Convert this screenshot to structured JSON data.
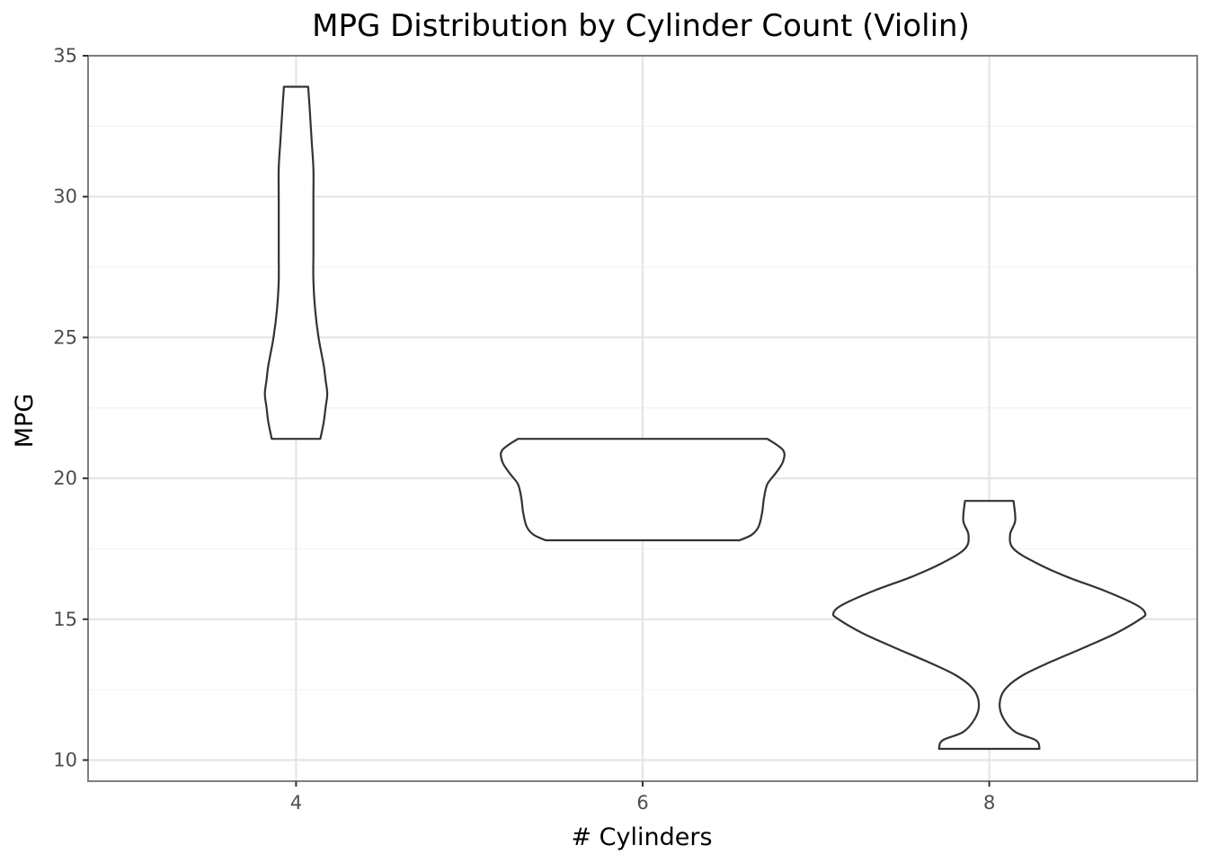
{
  "chart_data": {
    "type": "violin",
    "title": "MPG Distribution by Cylinder Count (Violin)",
    "xlabel": "# Cylinders",
    "ylabel": "MPG",
    "categories": [
      "4",
      "6",
      "8"
    ],
    "x": [
      4,
      6,
      8
    ],
    "xlim": [
      2.8,
      9.2
    ],
    "ylim": [
      9.25,
      35
    ],
    "yticks": [
      10,
      15,
      20,
      25,
      30,
      35
    ],
    "grid": true,
    "legend": "none",
    "colors": {
      "outline": "#333333",
      "fill": "#ffffff",
      "grid_major": "#e5e5e5",
      "grid_minor": "#f3f3f3",
      "panel_border": "#7f7f7f"
    },
    "violins": [
      {
        "x": 4,
        "ymin": 21.4,
        "ymax": 33.9,
        "profile": [
          [
            21.4,
            0.14
          ],
          [
            22.0,
            0.16
          ],
          [
            22.5,
            0.17
          ],
          [
            23.0,
            0.18
          ],
          [
            23.5,
            0.17
          ],
          [
            24.0,
            0.16
          ],
          [
            25.0,
            0.13
          ],
          [
            26.0,
            0.11
          ],
          [
            27.0,
            0.1
          ],
          [
            28.0,
            0.1
          ],
          [
            29.0,
            0.1
          ],
          [
            30.0,
            0.1
          ],
          [
            31.0,
            0.1
          ],
          [
            32.0,
            0.09
          ],
          [
            33.0,
            0.08
          ],
          [
            33.9,
            0.07
          ]
        ]
      },
      {
        "x": 6,
        "ymin": 17.8,
        "ymax": 21.4,
        "profile": [
          [
            17.8,
            0.56
          ],
          [
            18.0,
            0.63
          ],
          [
            18.3,
            0.67
          ],
          [
            18.8,
            0.69
          ],
          [
            19.3,
            0.7
          ],
          [
            19.8,
            0.72
          ],
          [
            20.2,
            0.77
          ],
          [
            20.6,
            0.81
          ],
          [
            21.0,
            0.81
          ],
          [
            21.4,
            0.72
          ]
        ]
      },
      {
        "x": 8,
        "ymin": 10.4,
        "ymax": 19.2,
        "profile": [
          [
            10.4,
            0.29
          ],
          [
            10.7,
            0.27
          ],
          [
            11.0,
            0.15
          ],
          [
            11.5,
            0.08
          ],
          [
            12.0,
            0.06
          ],
          [
            12.5,
            0.09
          ],
          [
            13.0,
            0.19
          ],
          [
            13.5,
            0.36
          ],
          [
            14.0,
            0.55
          ],
          [
            14.5,
            0.73
          ],
          [
            15.0,
            0.87
          ],
          [
            15.2,
            0.9
          ],
          [
            15.5,
            0.85
          ],
          [
            16.0,
            0.67
          ],
          [
            16.5,
            0.45
          ],
          [
            17.0,
            0.27
          ],
          [
            17.5,
            0.14
          ],
          [
            18.0,
            0.12
          ],
          [
            18.5,
            0.15
          ],
          [
            19.2,
            0.14
          ]
        ]
      }
    ]
  }
}
